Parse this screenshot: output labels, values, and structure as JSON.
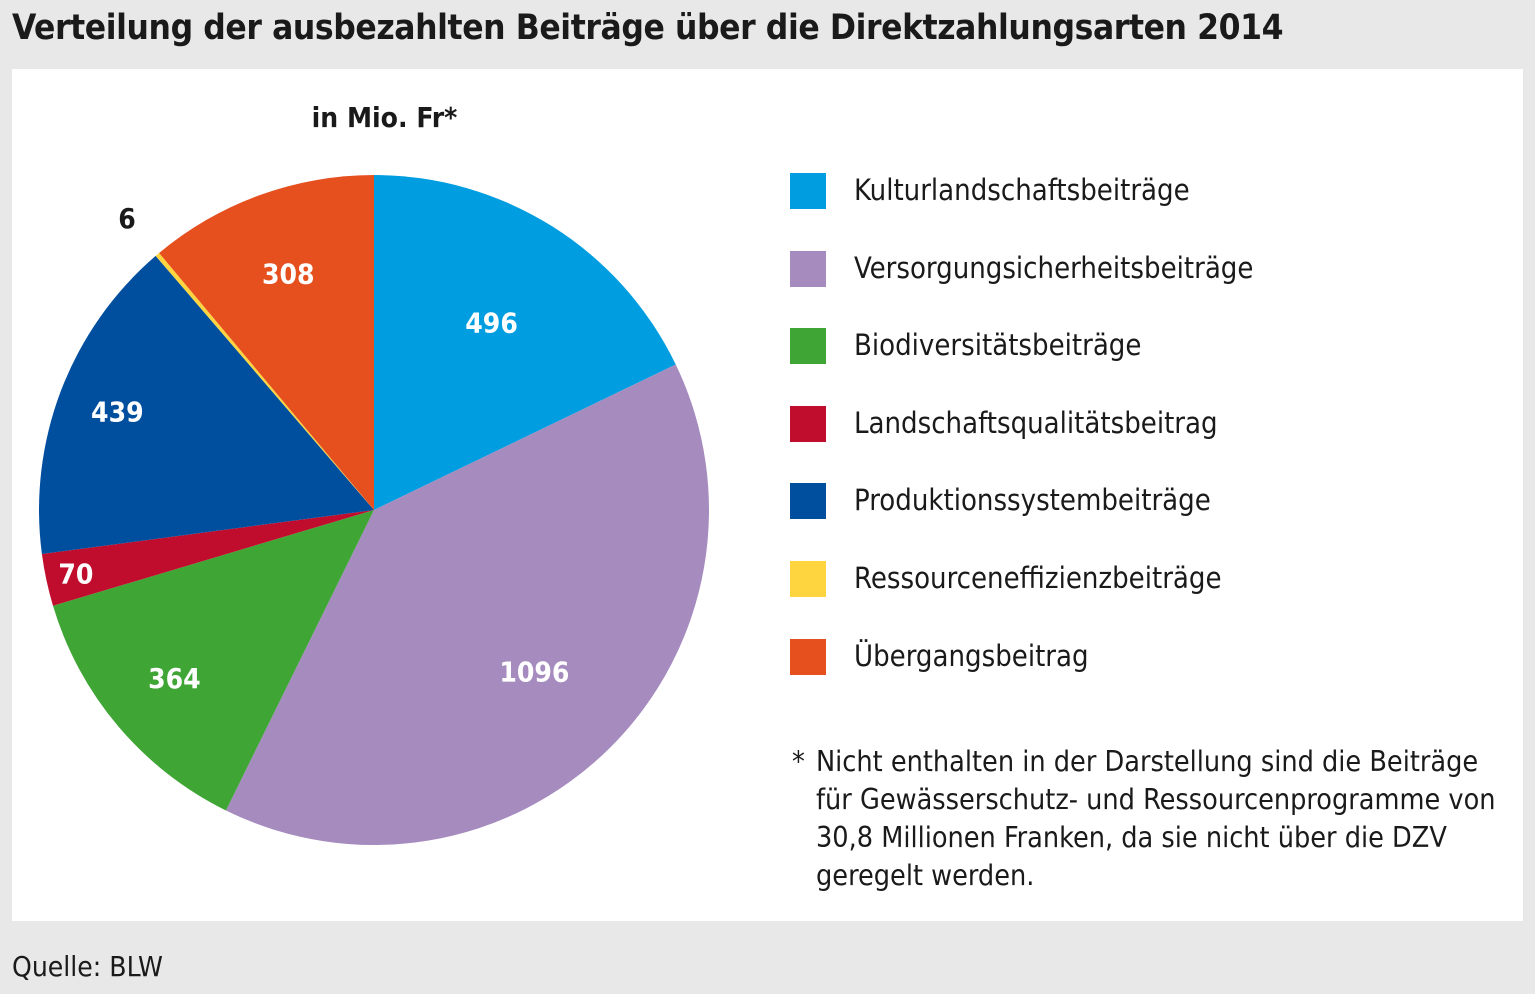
{
  "title": "Verteilung der ausbezahlten Beiträge über die Direktzahlungsarten 2014",
  "unit_label": "in Mio. Fr*",
  "footnote": {
    "marker": "*",
    "text": "Nicht enthalten in der Darstellung sind die Beiträge für Gewässerschutz- und Ressourcenprogramme von 30,8 Millionen Franken, da sie nicht über die DZV geregelt werden."
  },
  "source": "Quelle: BLW",
  "chart_data": {
    "type": "pie",
    "title": "Verteilung der ausbezahlten Beiträge über die Direktzahlungsarten 2014",
    "unit": "in Mio. Fr*",
    "start": "12 o'clock, clockwise",
    "legend_position": "right",
    "slices": [
      {
        "label": "Kulturlandschaftsbeiträge",
        "value": 496,
        "display": "496",
        "color": "#009ee0"
      },
      {
        "label": "Versorgungsicherheitsbeiträge",
        "value": 1096,
        "display": "1096",
        "color": "#a68bbf"
      },
      {
        "label": "Biodiversitätsbeiträge",
        "value": 364,
        "display": "364",
        "color": "#3fa535"
      },
      {
        "label": "Landschaftsqualitätsbeitrag",
        "value": 70,
        "display": "70",
        "color": "#c00d2d"
      },
      {
        "label": "Produktionssystembeiträge",
        "value": 439,
        "display": "439",
        "color": "#004f9f"
      },
      {
        "label": "Ressourceneffizienzbeiträge",
        "value": 6,
        "display": "6",
        "color": "#ffd53f"
      },
      {
        "label": "Übergangsbeitrag",
        "value": 308,
        "display": "308",
        "color": "#e6501f"
      }
    ]
  }
}
